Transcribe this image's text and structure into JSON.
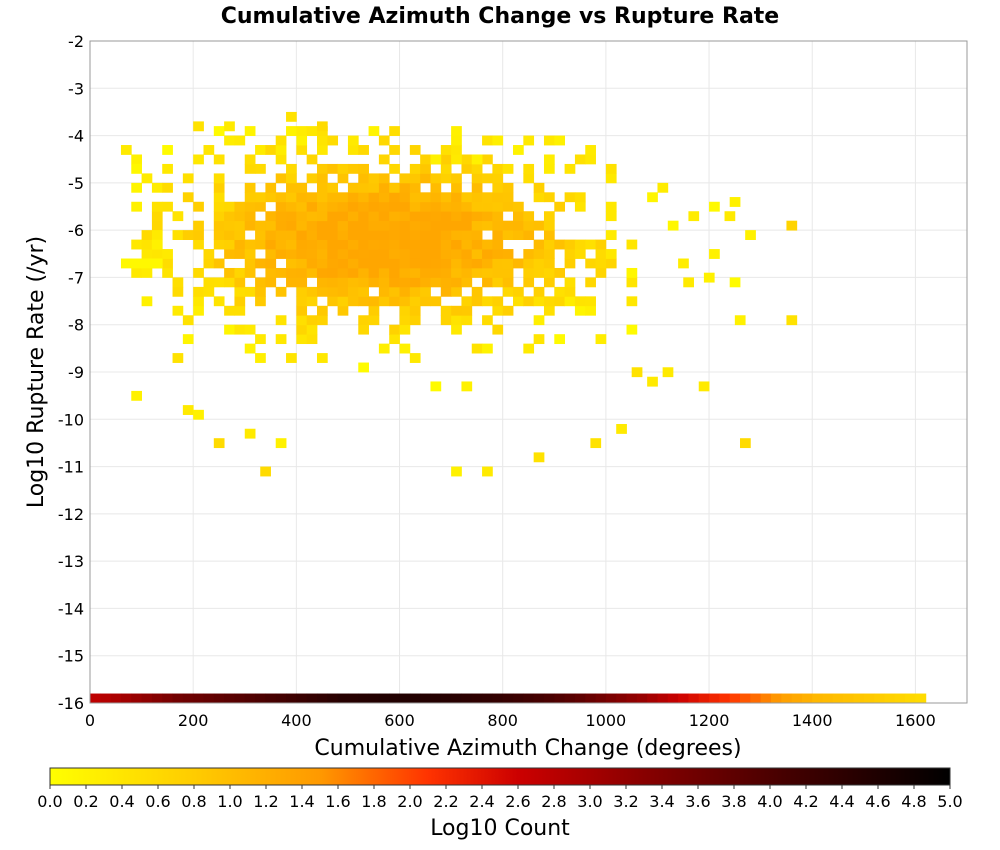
{
  "chart_data": {
    "type": "heatmap",
    "title": "Cumulative Azimuth Change vs Rupture Rate",
    "xlabel": "Cumulative Azimuth Change (degrees)",
    "ylabel": "Log10 Rupture Rate (/yr)",
    "xlim": [
      0,
      1700
    ],
    "ylim": [
      -16,
      -2
    ],
    "x_ticks": [
      "0",
      "200",
      "400",
      "600",
      "800",
      "1000",
      "1200",
      "1400",
      "1600"
    ],
    "y_ticks": [
      "-2",
      "-3",
      "-4",
      "-5",
      "-6",
      "-7",
      "-8",
      "-9",
      "-10",
      "-11",
      "-12",
      "-13",
      "-14",
      "-15",
      "-16"
    ],
    "grid": true,
    "cell_width_deg": 20,
    "cell_height_log": 0.2,
    "color_scale": {
      "label": "Log10 Count",
      "min": 0.0,
      "max": 5.0,
      "ticks": [
        "0.0",
        "0.2",
        "0.4",
        "0.6",
        "0.8",
        "1.0",
        "1.2",
        "1.4",
        "1.6",
        "1.8",
        "2.0",
        "2.2",
        "2.4",
        "2.6",
        "2.8",
        "3.0",
        "3.2",
        "3.4",
        "3.6",
        "3.8",
        "4.0",
        "4.2",
        "4.4",
        "4.6",
        "4.8",
        "5.0"
      ],
      "colors": [
        "#ffff00",
        "#ffcc00",
        "#ff9900",
        "#ff3300",
        "#cc0000",
        "#880000",
        "#440000",
        "#000000"
      ]
    },
    "marginal_x": {
      "description_y": -15.9,
      "x_start": 0,
      "x_end": 1620,
      "values": [
        3.0,
        3.1,
        3.2,
        3.3,
        3.4,
        3.5,
        3.6,
        3.7,
        3.8,
        3.85,
        3.9,
        3.95,
        4.0,
        4.05,
        4.1,
        4.15,
        4.2,
        4.25,
        4.3,
        4.35,
        4.4,
        4.45,
        4.5,
        4.55,
        4.6,
        4.6,
        4.62,
        4.63,
        4.65,
        4.65,
        4.65,
        4.64,
        4.63,
        4.62,
        4.6,
        4.58,
        4.55,
        4.52,
        4.5,
        4.46,
        4.42,
        4.38,
        4.33,
        4.28,
        4.22,
        4.15,
        4.08,
        4.0,
        3.9,
        3.8,
        3.7,
        3.6,
        3.5,
        3.4,
        3.25,
        3.1,
        2.95,
        2.8,
        2.65,
        2.5,
        2.35,
        2.2,
        2.05,
        1.9,
        1.75,
        1.6,
        1.45,
        1.3,
        1.2,
        1.1,
        1.0,
        0.95,
        0.9,
        0.85,
        0.8,
        0.75,
        0.7,
        0.65,
        0.6,
        0.55,
        0.5
      ]
    },
    "cells": [
      [
        60,
        -4.4,
        0.3
      ],
      [
        80,
        -4.6,
        0.2
      ],
      [
        80,
        -4.8,
        0.1
      ],
      [
        80,
        -5.6,
        0.2
      ],
      [
        60,
        -6.8,
        0.1
      ],
      [
        80,
        -6.8,
        0.1
      ],
      [
        100,
        -6.8,
        0.1
      ],
      [
        120,
        -6.8,
        0.1
      ],
      [
        100,
        -7.6,
        0.2
      ],
      [
        80,
        -9.6,
        0.2
      ],
      [
        160,
        -8.8,
        0.4
      ],
      [
        180,
        -9.9,
        0.3
      ],
      [
        120,
        -5.6,
        0.4
      ],
      [
        120,
        -6.2,
        0.3
      ],
      [
        120,
        -6.4,
        0.2
      ],
      [
        140,
        -6.6,
        0.3
      ],
      [
        160,
        -7.8,
        0.3
      ],
      [
        200,
        -10,
        0.2
      ],
      [
        240,
        -10.6,
        0.5
      ],
      [
        300,
        -10.4,
        0.3
      ],
      [
        330,
        -11.2,
        0.5
      ],
      [
        360,
        -10.6,
        0.2
      ],
      [
        700,
        -11.2,
        0.2
      ],
      [
        760,
        -11.2,
        0.3
      ],
      [
        860,
        -10.9,
        0.4
      ],
      [
        1260,
        -10.6,
        0.5
      ],
      [
        1350,
        -6,
        0.6
      ],
      [
        1350,
        -8,
        0.4
      ],
      [
        1250,
        -8,
        0.2
      ],
      [
        1270,
        -6.2,
        0.2
      ],
      [
        1190,
        -7.1,
        0.2
      ],
      [
        1200,
        -6.6,
        0.2
      ],
      [
        1230,
        -5.8,
        0.3
      ],
      [
        1240,
        -5.5,
        0.2
      ],
      [
        1150,
        -7.2,
        0.3
      ],
      [
        1180,
        -9.4,
        0.3
      ],
      [
        1110,
        -9.1,
        0.3
      ],
      [
        1080,
        -9.3,
        0.3
      ],
      [
        1050,
        -9.1,
        0.4
      ],
      [
        1020,
        -10.3,
        0.3
      ],
      [
        970,
        -10.6,
        0.4
      ],
      [
        200,
        -3.9,
        0.4
      ],
      [
        260,
        -3.9,
        0.3
      ],
      [
        380,
        -3.7,
        0.4
      ],
      [
        440,
        -3.9,
        0.5
      ],
      [
        960,
        -4.4,
        0.3
      ],
      [
        900,
        -4.2,
        0.2
      ],
      [
        660,
        -4.6,
        0.2
      ],
      [
        700,
        -4.6,
        0.3
      ],
      [
        740,
        -4.6,
        0.2
      ]
    ]
  }
}
